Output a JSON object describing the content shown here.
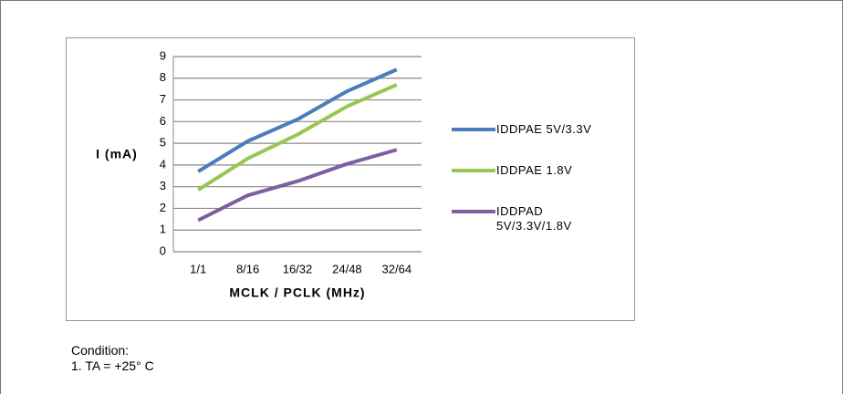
{
  "chart_data": {
    "type": "line",
    "ylabel": "I (mA)",
    "xlabel": "MCLK / PCLK (MHz)",
    "categories": [
      "1/1",
      "8/16",
      "16/32",
      "24/48",
      "32/64"
    ],
    "series": [
      {
        "name": "IDDPAE 5V/3.3V",
        "color": "#4a7ebb",
        "values": [
          3.7,
          5.1,
          6.1,
          7.4,
          8.4
        ]
      },
      {
        "name": "IDDPAE 1.8V",
        "color": "#98c654",
        "values": [
          2.85,
          4.3,
          5.4,
          6.7,
          7.7
        ]
      },
      {
        "name": "IDDPAD 5V/3.3V/1.8V",
        "color": "#7d5fa0",
        "values": [
          1.45,
          2.6,
          3.25,
          4.05,
          4.7
        ]
      }
    ],
    "ylim": [
      0,
      9
    ],
    "yticks": [
      0,
      1,
      2,
      3,
      4,
      5,
      6,
      7,
      8,
      9
    ],
    "grid": true,
    "legend": "right"
  },
  "condition": {
    "title": "Condition:",
    "items": [
      "1. TA = +25° C"
    ]
  }
}
